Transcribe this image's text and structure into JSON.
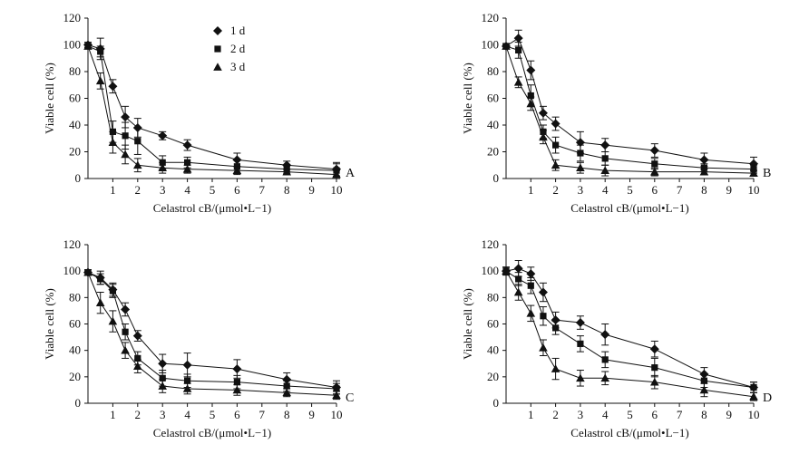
{
  "figure": {
    "panel_letters": [
      "A",
      "B",
      "C",
      "D"
    ]
  },
  "chart_data": [
    {
      "type": "line",
      "panel": "A",
      "xlabel": "Celastrol cB/(μmol•L−1)",
      "ylabel": "Viable cell (%)",
      "ylim": [
        0,
        120
      ],
      "xlim": [
        0,
        10
      ],
      "xticks": [
        1,
        2,
        3,
        4,
        5,
        6,
        7,
        8,
        9,
        10
      ],
      "yticks": [
        0,
        20,
        40,
        60,
        80,
        100,
        120
      ],
      "legend": [
        "1 d",
        "2 d",
        "3 d"
      ],
      "series": [
        {
          "name": "1 d",
          "marker": "diamond",
          "x": [
            0,
            0.5,
            1,
            1.5,
            2,
            3,
            4,
            6,
            8,
            10
          ],
          "y": [
            100,
            97,
            69,
            46,
            38,
            32,
            25,
            14,
            10,
            7
          ],
          "err": [
            2,
            8,
            5,
            8,
            7,
            3,
            4,
            5,
            3,
            5
          ]
        },
        {
          "name": "2 d",
          "marker": "square",
          "x": [
            0,
            0.5,
            1,
            1.5,
            2,
            3,
            4,
            6,
            8,
            10
          ],
          "y": [
            99,
            95,
            35,
            32,
            28,
            12,
            12,
            9,
            7,
            6
          ],
          "err": [
            2,
            4,
            8,
            10,
            10,
            5,
            4,
            5,
            3,
            5
          ]
        },
        {
          "name": "3 d",
          "marker": "triangle",
          "x": [
            0,
            0.5,
            1,
            1.5,
            2,
            3,
            4,
            6,
            8,
            10
          ],
          "y": [
            99,
            73,
            27,
            18,
            10,
            8,
            7,
            6,
            5,
            3
          ],
          "err": [
            2,
            6,
            8,
            7,
            5,
            4,
            3,
            3,
            2,
            3
          ]
        }
      ]
    },
    {
      "type": "line",
      "panel": "B",
      "xlabel": "Celastrol cB/(μmol•L−1)",
      "ylabel": "Viable cell (%)",
      "ylim": [
        0,
        120
      ],
      "xlim": [
        0,
        10
      ],
      "xticks": [
        1,
        2,
        3,
        4,
        5,
        6,
        7,
        8,
        9,
        10
      ],
      "yticks": [
        0,
        20,
        40,
        60,
        80,
        100,
        120
      ],
      "series": [
        {
          "name": "1 d",
          "marker": "diamond",
          "x": [
            0,
            0.5,
            1,
            1.5,
            2,
            3,
            4,
            6,
            8,
            10
          ],
          "y": [
            99,
            105,
            81,
            49,
            41,
            27,
            25,
            21,
            14,
            11
          ],
          "err": [
            2,
            6,
            7,
            5,
            5,
            8,
            5,
            5,
            5,
            5
          ]
        },
        {
          "name": "2 d",
          "marker": "square",
          "x": [
            0,
            0.5,
            1,
            1.5,
            2,
            3,
            4,
            6,
            8,
            10
          ],
          "y": [
            99,
            96,
            62,
            35,
            25,
            19,
            15,
            11,
            8,
            7
          ],
          "err": [
            2,
            6,
            8,
            5,
            6,
            6,
            5,
            4,
            3,
            3
          ]
        },
        {
          "name": "3 d",
          "marker": "triangle",
          "x": [
            0,
            0.5,
            1,
            1.5,
            2,
            3,
            4,
            6,
            8,
            10
          ],
          "y": [
            99,
            72,
            56,
            31,
            10,
            8,
            6,
            5,
            5,
            4
          ],
          "err": [
            2,
            4,
            5,
            5,
            4,
            4,
            4,
            3,
            2,
            2
          ]
        }
      ]
    },
    {
      "type": "line",
      "panel": "C",
      "xlabel": "Celastrol cB/(μmol•L−1)",
      "ylabel": "Viable cell (%)",
      "ylim": [
        0,
        120
      ],
      "xlim": [
        0,
        10
      ],
      "xticks": [
        1,
        2,
        3,
        4,
        5,
        6,
        7,
        8,
        9,
        10
      ],
      "yticks": [
        0,
        20,
        40,
        60,
        80,
        100,
        120
      ],
      "series": [
        {
          "name": "1 d",
          "marker": "diamond",
          "x": [
            0,
            0.5,
            1,
            1.5,
            2,
            3,
            4,
            6,
            8,
            10
          ],
          "y": [
            99,
            95,
            86,
            71,
            51,
            30,
            29,
            26,
            18,
            12
          ],
          "err": [
            2,
            5,
            5,
            5,
            4,
            7,
            9,
            7,
            5,
            5
          ]
        },
        {
          "name": "2 d",
          "marker": "square",
          "x": [
            0,
            0.5,
            1,
            1.5,
            2,
            3,
            4,
            6,
            8,
            10
          ],
          "y": [
            99,
            94,
            85,
            54,
            34,
            19,
            17,
            16,
            13,
            11
          ],
          "err": [
            2,
            4,
            5,
            6,
            5,
            6,
            5,
            5,
            4,
            4
          ]
        },
        {
          "name": "3 d",
          "marker": "triangle",
          "x": [
            0,
            0.5,
            1,
            1.5,
            2,
            3,
            4,
            6,
            8,
            10
          ],
          "y": [
            99,
            76,
            62,
            40,
            28,
            13,
            11,
            10,
            8,
            6
          ],
          "err": [
            2,
            8,
            8,
            6,
            5,
            5,
            4,
            4,
            3,
            3
          ]
        }
      ]
    },
    {
      "type": "line",
      "panel": "D",
      "xlabel": "Celastrol cB/(μmol•L−1)",
      "ylabel": "Viable cell (%)",
      "ylim": [
        0,
        120
      ],
      "xlim": [
        0,
        10
      ],
      "xticks": [
        1,
        2,
        3,
        4,
        5,
        6,
        7,
        8,
        9,
        10
      ],
      "yticks": [
        0,
        20,
        40,
        60,
        80,
        100,
        120
      ],
      "series": [
        {
          "name": "1 d",
          "marker": "diamond",
          "x": [
            0,
            0.5,
            1,
            1.5,
            2,
            3,
            4,
            6,
            8,
            10
          ],
          "y": [
            100,
            102,
            98,
            84,
            63,
            61,
            52,
            41,
            22,
            12
          ],
          "err": [
            3,
            6,
            5,
            7,
            6,
            5,
            8,
            6,
            5,
            4
          ]
        },
        {
          "name": "2 d",
          "marker": "square",
          "x": [
            0,
            0.5,
            1,
            1.5,
            2,
            3,
            4,
            6,
            8,
            10
          ],
          "y": [
            100,
            94,
            89,
            66,
            57,
            45,
            33,
            27,
            17,
            12
          ],
          "err": [
            3,
            5,
            6,
            7,
            5,
            6,
            6,
            7,
            5,
            4
          ]
        },
        {
          "name": "3 d",
          "marker": "triangle",
          "x": [
            0,
            0.5,
            1,
            1.5,
            2,
            3,
            4,
            6,
            8,
            10
          ],
          "y": [
            100,
            84,
            68,
            42,
            26,
            19,
            19,
            16,
            10,
            5
          ],
          "err": [
            3,
            6,
            6,
            6,
            8,
            6,
            5,
            5,
            5,
            3
          ]
        }
      ]
    }
  ]
}
